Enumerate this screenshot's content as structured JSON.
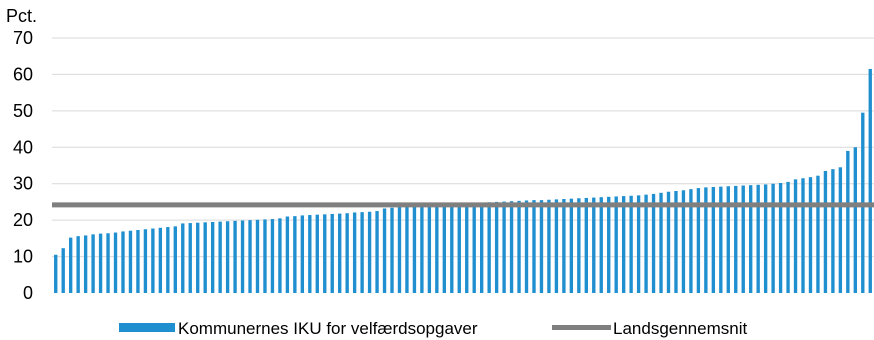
{
  "chart_data": {
    "type": "bar",
    "y_unit_label": "Pct.",
    "ylim": [
      0,
      70
    ],
    "yticks": [
      0,
      10,
      20,
      30,
      40,
      50,
      60,
      70
    ],
    "grid": true,
    "legend_position": "bottom",
    "series": [
      {
        "name": "Kommunernes IKU for velfærdsopgaver",
        "type": "bar",
        "color": "#1f8fd0",
        "values": [
          10.5,
          12.3,
          15.2,
          15.6,
          15.8,
          16.1,
          16.3,
          16.4,
          16.6,
          16.9,
          17.1,
          17.3,
          17.5,
          17.7,
          17.9,
          18.1,
          18.3,
          19.1,
          19.2,
          19.3,
          19.4,
          19.5,
          19.6,
          19.7,
          19.8,
          19.9,
          20.0,
          20.1,
          20.2,
          20.3,
          20.5,
          21.0,
          21.1,
          21.3,
          21.4,
          21.5,
          21.6,
          21.7,
          21.8,
          21.9,
          22.1,
          22.2,
          22.3,
          22.5,
          23.2,
          23.4,
          23.6,
          23.7,
          23.8,
          23.9,
          24.0,
          24.1,
          24.2,
          24.3,
          24.4,
          24.5,
          24.7,
          24.8,
          24.9,
          25.0,
          25.1,
          25.2,
          25.3,
          25.4,
          25.5,
          25.5,
          25.6,
          25.7,
          25.8,
          25.9,
          26.0,
          26.1,
          26.2,
          26.3,
          26.4,
          26.5,
          26.6,
          26.7,
          26.8,
          27.0,
          27.2,
          27.5,
          27.8,
          28.0,
          28.2,
          28.5,
          28.8,
          29.0,
          29.1,
          29.2,
          29.3,
          29.4,
          29.5,
          29.6,
          29.7,
          29.8,
          30.0,
          30.2,
          30.5,
          31.2,
          31.5,
          31.8,
          32.2,
          33.5,
          34.0,
          34.5,
          39.0,
          40.0,
          49.5,
          61.5
        ]
      },
      {
        "name": "Landsgennemsnit",
        "type": "line",
        "color": "#7f7f7f",
        "value": 24.2
      }
    ]
  }
}
